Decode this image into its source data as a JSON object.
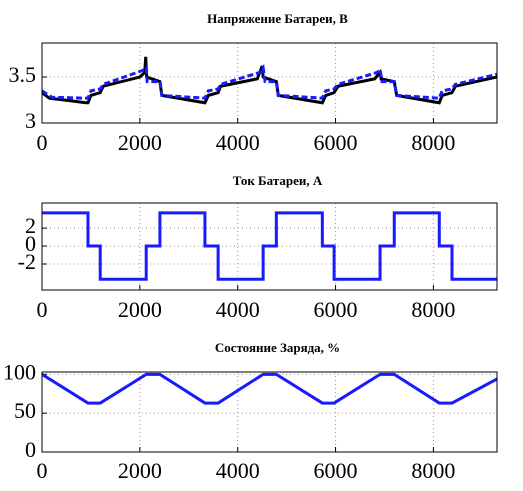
{
  "chart_data": [
    {
      "type": "line",
      "title": "Напряжение Батареи, В",
      "xlim": [
        0,
        9300
      ],
      "xticks": [
        0,
        2000,
        4000,
        6000,
        8000
      ],
      "ylim": [
        3,
        3.87
      ],
      "yticks": [
        3,
        3.5
      ],
      "grid": true,
      "series": [
        {
          "color": "#000000",
          "linestyle": "solid",
          "x": [
            0,
            150,
            900,
            940,
            1000,
            1190,
            1250,
            2000,
            2100,
            2120,
            2140,
            2410,
            2450,
            3330,
            3400,
            3600,
            3650,
            4400,
            4500,
            4520,
            4790,
            4830,
            5730,
            5800,
            5970,
            6050,
            6800,
            6910,
            6930,
            7200,
            7250,
            8120,
            8180,
            8380,
            8450,
            9300
          ],
          "values": [
            3.33,
            3.27,
            3.22,
            3.22,
            3.3,
            3.33,
            3.4,
            3.5,
            3.55,
            3.72,
            3.5,
            3.45,
            3.3,
            3.22,
            3.3,
            3.33,
            3.4,
            3.48,
            3.62,
            3.5,
            3.45,
            3.3,
            3.22,
            3.3,
            3.33,
            3.4,
            3.48,
            3.55,
            3.48,
            3.45,
            3.3,
            3.22,
            3.3,
            3.33,
            3.4,
            3.5
          ]
        },
        {
          "color": "#1a1aff",
          "linestyle": "dashed",
          "x": [
            0,
            200,
            900,
            940,
            1000,
            1190,
            1250,
            2050,
            2130,
            2150,
            2410,
            2450,
            3330,
            3400,
            3600,
            3650,
            4450,
            4520,
            4560,
            4790,
            4830,
            5730,
            5800,
            5970,
            6050,
            6850,
            6910,
            6950,
            7200,
            7250,
            8120,
            8180,
            8380,
            8450,
            9300
          ],
          "values": [
            3.35,
            3.28,
            3.27,
            3.27,
            3.35,
            3.37,
            3.42,
            3.57,
            3.6,
            3.45,
            3.45,
            3.3,
            3.27,
            3.35,
            3.37,
            3.42,
            3.55,
            3.6,
            3.45,
            3.45,
            3.3,
            3.27,
            3.35,
            3.37,
            3.42,
            3.55,
            3.58,
            3.45,
            3.45,
            3.3,
            3.27,
            3.35,
            3.37,
            3.42,
            3.53
          ]
        }
      ]
    },
    {
      "type": "line",
      "title": "Ток Батареи, А",
      "xlim": [
        0,
        9300
      ],
      "xticks": [
        0,
        2000,
        4000,
        6000,
        8000
      ],
      "ylim": [
        -4.9,
        4.8
      ],
      "yticks": [
        -2,
        0,
        2
      ],
      "grid": true,
      "series": [
        {
          "color": "#1a1aff",
          "linestyle": "solid",
          "x": [
            0,
            940,
            940,
            1190,
            1190,
            2130,
            2130,
            2410,
            2410,
            3330,
            3330,
            3600,
            3600,
            4520,
            4520,
            4790,
            4790,
            5730,
            5730,
            5970,
            5970,
            6910,
            6910,
            7200,
            7200,
            8120,
            8120,
            8380,
            8380,
            9300
          ],
          "values": [
            3.7,
            3.7,
            0,
            0,
            -3.7,
            -3.7,
            0,
            0,
            3.7,
            3.7,
            0,
            0,
            -3.7,
            -3.7,
            0,
            0,
            3.7,
            3.7,
            0,
            0,
            -3.7,
            -3.7,
            0,
            0,
            3.7,
            3.7,
            0,
            0,
            -3.7,
            -3.7
          ]
        }
      ]
    },
    {
      "type": "line",
      "title": "Состояние Заряда, %",
      "xlim": [
        0,
        9300
      ],
      "xticks": [
        0,
        2000,
        4000,
        6000,
        8000
      ],
      "ylim": [
        0,
        103
      ],
      "yticks": [
        0,
        50,
        100
      ],
      "grid": true,
      "series": [
        {
          "color": "#1a1aff",
          "linestyle": "solid",
          "x": [
            0,
            940,
            1190,
            2130,
            2410,
            3330,
            3600,
            4520,
            4790,
            5730,
            5970,
            6910,
            7200,
            8120,
            8380,
            9300
          ],
          "values": [
            100,
            63,
            63,
            100,
            100,
            63,
            63,
            100,
            100,
            63,
            63,
            100,
            100,
            63,
            63,
            94
          ]
        }
      ]
    }
  ]
}
